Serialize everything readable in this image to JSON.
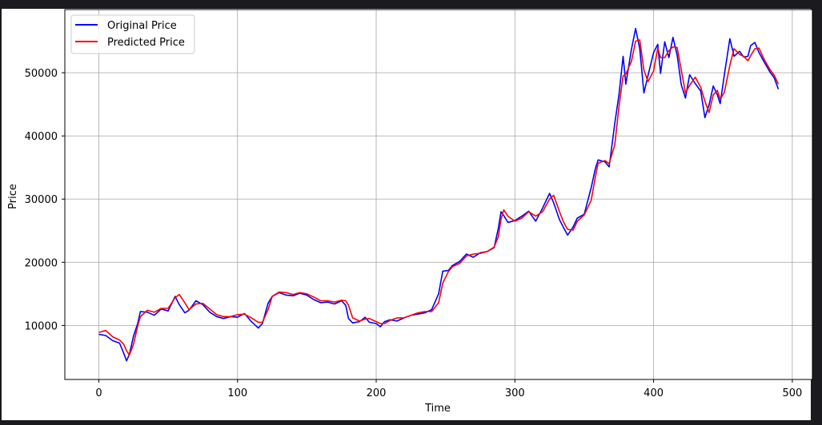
{
  "chart_data": {
    "type": "line",
    "title": "",
    "xlabel": "Time",
    "ylabel": "Price",
    "xlim": [
      -24.5,
      514.5
    ],
    "ylim": [
      1450,
      60000
    ],
    "xticks": [
      0,
      100,
      200,
      300,
      400,
      500
    ],
    "yticks": [
      10000,
      20000,
      30000,
      40000,
      50000
    ],
    "grid": true,
    "legend_position": "top-left",
    "series": [
      {
        "name": "Original Price",
        "color": "#0000ff",
        "points": [
          [
            0,
            8600
          ],
          [
            5,
            8400
          ],
          [
            10,
            7600
          ],
          [
            15,
            7200
          ],
          [
            18,
            5600
          ],
          [
            20,
            4400
          ],
          [
            22,
            5400
          ],
          [
            25,
            8300
          ],
          [
            28,
            10300
          ],
          [
            30,
            12200
          ],
          [
            35,
            12100
          ],
          [
            40,
            11600
          ],
          [
            45,
            12600
          ],
          [
            50,
            12300
          ],
          [
            55,
            14600
          ],
          [
            58,
            13300
          ],
          [
            62,
            12000
          ],
          [
            65,
            12400
          ],
          [
            70,
            13900
          ],
          [
            75,
            13300
          ],
          [
            80,
            12100
          ],
          [
            85,
            11400
          ],
          [
            90,
            11100
          ],
          [
            95,
            11400
          ],
          [
            100,
            11300
          ],
          [
            105,
            11900
          ],
          [
            110,
            10600
          ],
          [
            115,
            9600
          ],
          [
            118,
            10300
          ],
          [
            122,
            13500
          ],
          [
            125,
            14600
          ],
          [
            130,
            15200
          ],
          [
            135,
            14800
          ],
          [
            140,
            14700
          ],
          [
            145,
            15100
          ],
          [
            150,
            14800
          ],
          [
            155,
            14100
          ],
          [
            160,
            13600
          ],
          [
            165,
            13700
          ],
          [
            170,
            13400
          ],
          [
            175,
            13900
          ],
          [
            178,
            13200
          ],
          [
            180,
            11100
          ],
          [
            183,
            10400
          ],
          [
            188,
            10600
          ],
          [
            192,
            11300
          ],
          [
            195,
            10500
          ],
          [
            200,
            10300
          ],
          [
            203,
            9800
          ],
          [
            206,
            10600
          ],
          [
            210,
            10900
          ],
          [
            215,
            10700
          ],
          [
            220,
            11200
          ],
          [
            225,
            11600
          ],
          [
            230,
            11800
          ],
          [
            235,
            12000
          ],
          [
            240,
            12500
          ],
          [
            245,
            15000
          ],
          [
            248,
            18600
          ],
          [
            252,
            18700
          ],
          [
            255,
            19500
          ],
          [
            260,
            20100
          ],
          [
            265,
            21300
          ],
          [
            270,
            20800
          ],
          [
            275,
            21500
          ],
          [
            280,
            21700
          ],
          [
            285,
            22300
          ],
          [
            288,
            25300
          ],
          [
            290,
            28000
          ],
          [
            292,
            27400
          ],
          [
            295,
            26300
          ],
          [
            300,
            26600
          ],
          [
            305,
            27300
          ],
          [
            310,
            28100
          ],
          [
            315,
            26500
          ],
          [
            320,
            28600
          ],
          [
            325,
            30900
          ],
          [
            328,
            29400
          ],
          [
            332,
            26800
          ],
          [
            335,
            25500
          ],
          [
            338,
            24300
          ],
          [
            342,
            25600
          ],
          [
            345,
            27000
          ],
          [
            350,
            27600
          ],
          [
            355,
            31800
          ],
          [
            358,
            34800
          ],
          [
            360,
            36200
          ],
          [
            365,
            35900
          ],
          [
            368,
            35100
          ],
          [
            372,
            42000
          ],
          [
            375,
            46500
          ],
          [
            378,
            52600
          ],
          [
            380,
            48200
          ],
          [
            384,
            53700
          ],
          [
            387,
            57000
          ],
          [
            390,
            53800
          ],
          [
            393,
            46800
          ],
          [
            396,
            49600
          ],
          [
            400,
            53200
          ],
          [
            403,
            54500
          ],
          [
            405,
            49900
          ],
          [
            408,
            54900
          ],
          [
            411,
            52400
          ],
          [
            414,
            55600
          ],
          [
            417,
            52800
          ],
          [
            420,
            48100
          ],
          [
            423,
            46000
          ],
          [
            426,
            49700
          ],
          [
            430,
            48300
          ],
          [
            434,
            47100
          ],
          [
            437,
            42900
          ],
          [
            440,
            44900
          ],
          [
            443,
            47900
          ],
          [
            446,
            46500
          ],
          [
            448,
            45100
          ],
          [
            451,
            49700
          ],
          [
            455,
            55400
          ],
          [
            458,
            52600
          ],
          [
            462,
            53400
          ],
          [
            465,
            52500
          ],
          [
            468,
            52600
          ],
          [
            470,
            54300
          ],
          [
            473,
            54800
          ],
          [
            476,
            53200
          ],
          [
            480,
            51600
          ],
          [
            484,
            50100
          ],
          [
            487,
            49200
          ],
          [
            490,
            47400
          ]
        ]
      },
      {
        "name": "Predicted Price",
        "color": "#ff0000",
        "points": [
          [
            0,
            8900
          ],
          [
            5,
            9200
          ],
          [
            10,
            8200
          ],
          [
            15,
            7700
          ],
          [
            18,
            7000
          ],
          [
            20,
            6000
          ],
          [
            22,
            5300
          ],
          [
            25,
            7000
          ],
          [
            28,
            9900
          ],
          [
            30,
            11400
          ],
          [
            35,
            12400
          ],
          [
            40,
            12100
          ],
          [
            45,
            12700
          ],
          [
            50,
            12700
          ],
          [
            55,
            14400
          ],
          [
            58,
            14900
          ],
          [
            62,
            13600
          ],
          [
            65,
            12500
          ],
          [
            70,
            13400
          ],
          [
            75,
            13500
          ],
          [
            80,
            12600
          ],
          [
            85,
            11700
          ],
          [
            90,
            11400
          ],
          [
            95,
            11400
          ],
          [
            100,
            11700
          ],
          [
            105,
            11800
          ],
          [
            110,
            11200
          ],
          [
            115,
            10500
          ],
          [
            118,
            10500
          ],
          [
            122,
            12500
          ],
          [
            125,
            14600
          ],
          [
            130,
            15300
          ],
          [
            135,
            15200
          ],
          [
            140,
            14900
          ],
          [
            145,
            15200
          ],
          [
            150,
            15000
          ],
          [
            155,
            14500
          ],
          [
            160,
            13900
          ],
          [
            165,
            13900
          ],
          [
            170,
            13700
          ],
          [
            175,
            14000
          ],
          [
            178,
            13900
          ],
          [
            180,
            13200
          ],
          [
            183,
            11200
          ],
          [
            188,
            10700
          ],
          [
            192,
            11000
          ],
          [
            195,
            11100
          ],
          [
            200,
            10600
          ],
          [
            203,
            10300
          ],
          [
            206,
            10300
          ],
          [
            210,
            10800
          ],
          [
            215,
            11200
          ],
          [
            220,
            11200
          ],
          [
            225,
            11600
          ],
          [
            230,
            12000
          ],
          [
            235,
            12200
          ],
          [
            240,
            12200
          ],
          [
            245,
            13600
          ],
          [
            248,
            16700
          ],
          [
            252,
            18500
          ],
          [
            255,
            19300
          ],
          [
            260,
            19800
          ],
          [
            265,
            21000
          ],
          [
            270,
            21300
          ],
          [
            275,
            21400
          ],
          [
            280,
            21700
          ],
          [
            285,
            22400
          ],
          [
            288,
            24000
          ],
          [
            290,
            26800
          ],
          [
            292,
            28300
          ],
          [
            295,
            27300
          ],
          [
            300,
            26500
          ],
          [
            305,
            27000
          ],
          [
            310,
            28000
          ],
          [
            315,
            27300
          ],
          [
            320,
            28000
          ],
          [
            325,
            30000
          ],
          [
            328,
            30600
          ],
          [
            332,
            28100
          ],
          [
            335,
            26400
          ],
          [
            338,
            25200
          ],
          [
            342,
            25100
          ],
          [
            345,
            26500
          ],
          [
            350,
            27500
          ],
          [
            355,
            29800
          ],
          [
            358,
            33500
          ],
          [
            360,
            35700
          ],
          [
            365,
            36100
          ],
          [
            368,
            35600
          ],
          [
            372,
            38600
          ],
          [
            375,
            44600
          ],
          [
            378,
            49500
          ],
          [
            380,
            49800
          ],
          [
            384,
            51800
          ],
          [
            387,
            55000
          ],
          [
            390,
            55200
          ],
          [
            393,
            50400
          ],
          [
            396,
            48600
          ],
          [
            400,
            50300
          ],
          [
            403,
            53900
          ],
          [
            405,
            52400
          ],
          [
            408,
            52400
          ],
          [
            411,
            53500
          ],
          [
            414,
            54100
          ],
          [
            417,
            54000
          ],
          [
            420,
            50400
          ],
          [
            423,
            46800
          ],
          [
            426,
            48000
          ],
          [
            430,
            49300
          ],
          [
            434,
            47700
          ],
          [
            437,
            45500
          ],
          [
            440,
            43700
          ],
          [
            443,
            46500
          ],
          [
            446,
            47200
          ],
          [
            448,
            45800
          ],
          [
            451,
            46900
          ],
          [
            455,
            51200
          ],
          [
            458,
            53800
          ],
          [
            462,
            52900
          ],
          [
            465,
            52600
          ],
          [
            468,
            51900
          ],
          [
            470,
            52700
          ],
          [
            473,
            53800
          ],
          [
            476,
            53900
          ],
          [
            480,
            52000
          ],
          [
            484,
            50500
          ],
          [
            487,
            49600
          ],
          [
            490,
            48200
          ]
        ]
      }
    ]
  }
}
